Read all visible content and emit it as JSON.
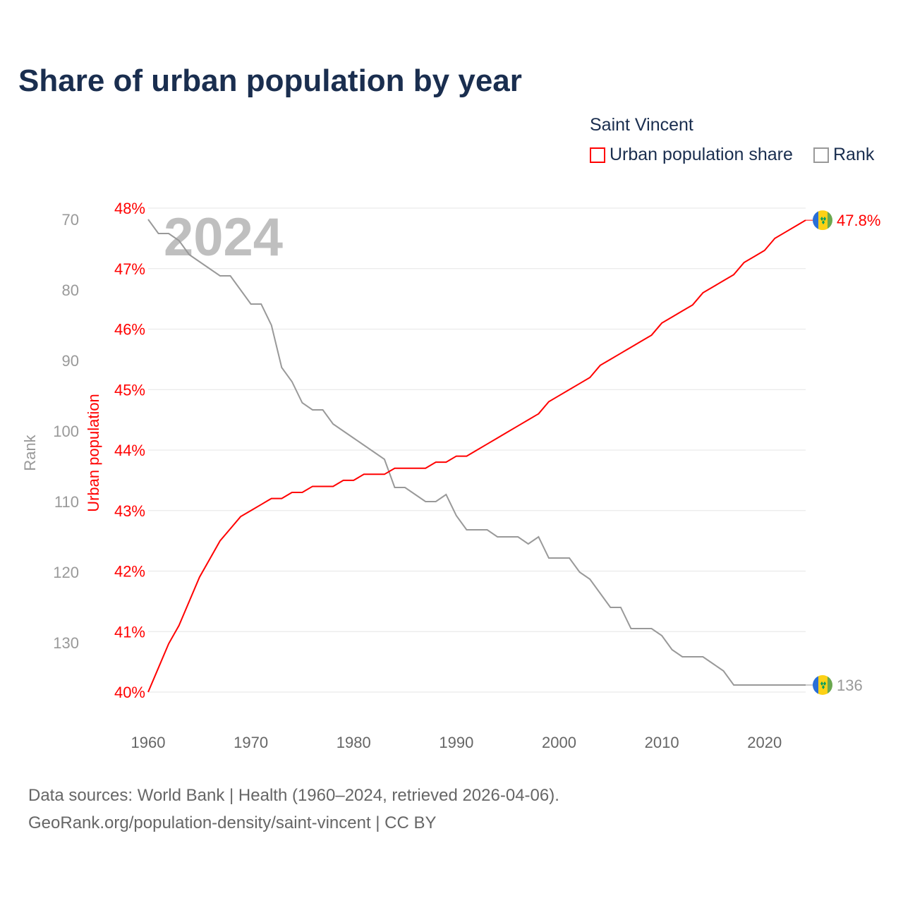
{
  "title": "Share of urban population by year",
  "legend": {
    "title": "Saint Vincent",
    "items": [
      {
        "label": "Urban population share",
        "color": "#ff0000"
      },
      {
        "label": "Rank",
        "color": "#999999"
      }
    ]
  },
  "footer": {
    "line1": "Data sources: World Bank | Health (1960–2024, retrieved 2026-04-06).",
    "line2": "GeoRank.org/population-density/saint-vincent | CC BY"
  },
  "chart_data": {
    "type": "line",
    "title": "Share of urban population by year",
    "year_label": "2024",
    "xlabel": "",
    "y_left_label": "Urban population",
    "y_rank_label": "Rank",
    "xlim": [
      1960,
      2024
    ],
    "x_ticks": [
      "1960",
      "1970",
      "1980",
      "1990",
      "2000",
      "2010",
      "2020"
    ],
    "ylim_share": [
      40,
      48
    ],
    "share_ticks": [
      "40%",
      "41%",
      "42%",
      "43%",
      "44%",
      "45%",
      "46%",
      "47%",
      "48%"
    ],
    "ylim_rank": [
      70,
      136
    ],
    "rank_ticks": [
      "70",
      "80",
      "90",
      "100",
      "110",
      "120",
      "130"
    ],
    "end_labels": {
      "share": "47.8%",
      "rank": "136"
    },
    "grid": true,
    "legend_position": "top-right",
    "x": [
      1960,
      1961,
      1962,
      1963,
      1964,
      1965,
      1966,
      1967,
      1968,
      1969,
      1970,
      1971,
      1972,
      1973,
      1974,
      1975,
      1976,
      1977,
      1978,
      1979,
      1980,
      1981,
      1982,
      1983,
      1984,
      1985,
      1986,
      1987,
      1988,
      1989,
      1990,
      1991,
      1992,
      1993,
      1994,
      1995,
      1996,
      1997,
      1998,
      1999,
      2000,
      2001,
      2002,
      2003,
      2004,
      2005,
      2006,
      2007,
      2008,
      2009,
      2010,
      2011,
      2012,
      2013,
      2014,
      2015,
      2016,
      2017,
      2018,
      2019,
      2020,
      2021,
      2022,
      2023,
      2024
    ],
    "series": [
      {
        "name": "Urban population share",
        "color": "#ff0000",
        "values": [
          40.0,
          40.4,
          40.8,
          41.1,
          41.5,
          41.9,
          42.2,
          42.5,
          42.7,
          42.9,
          43.0,
          43.1,
          43.2,
          43.2,
          43.3,
          43.3,
          43.4,
          43.4,
          43.4,
          43.5,
          43.5,
          43.6,
          43.6,
          43.6,
          43.7,
          43.7,
          43.7,
          43.7,
          43.8,
          43.8,
          43.9,
          43.9,
          44.0,
          44.1,
          44.2,
          44.3,
          44.4,
          44.5,
          44.6,
          44.8,
          44.9,
          45.0,
          45.1,
          45.2,
          45.4,
          45.5,
          45.6,
          45.7,
          45.8,
          45.9,
          46.1,
          46.2,
          46.3,
          46.4,
          46.6,
          46.7,
          46.8,
          46.9,
          47.1,
          47.2,
          47.3,
          47.5,
          47.6,
          47.7,
          47.8
        ]
      },
      {
        "name": "Rank",
        "color": "#999999",
        "values": [
          70,
          72,
          72,
          73,
          75,
          76,
          77,
          78,
          78,
          80,
          82,
          82,
          85,
          91,
          93,
          96,
          97,
          97,
          99,
          100,
          101,
          102,
          103,
          104,
          108,
          108,
          109,
          110,
          110,
          109,
          112,
          114,
          114,
          114,
          115,
          115,
          115,
          116,
          115,
          118,
          118,
          118,
          120,
          121,
          123,
          125,
          125,
          128,
          128,
          128,
          129,
          131,
          132,
          132,
          132,
          133,
          134,
          136,
          136,
          136,
          136,
          136,
          136,
          136,
          136
        ]
      }
    ]
  }
}
